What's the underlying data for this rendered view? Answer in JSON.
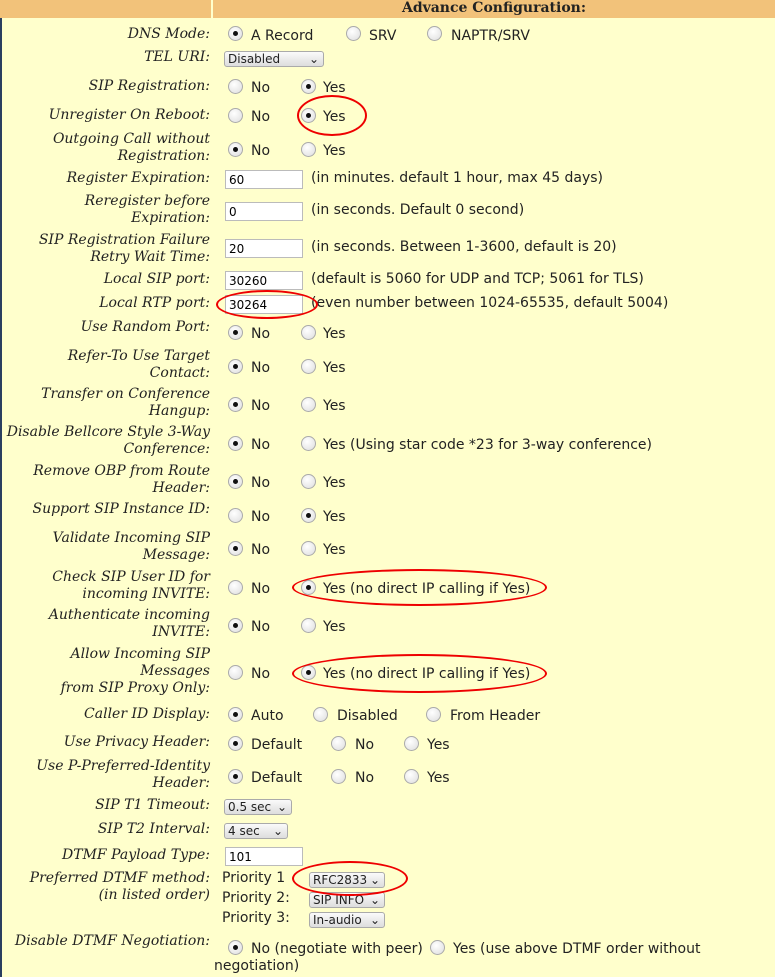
{
  "title": "Advance Configuration:",
  "labels": {
    "dns": "DNS Mode:",
    "tel": "TEL URI:",
    "sipreg": "SIP Registration:",
    "unreg": "Unregister On Reboot:",
    "outgoing": "Outgoing Call without\nRegistration:",
    "regexp": "Register Expiration:",
    "rereg": "Reregister before\nExpiration:",
    "failwait": "SIP Registration Failure\nRetry Wait Time:",
    "sipport": "Local SIP port:",
    "rtpport": "Local RTP port:",
    "randport": "Use Random Port:",
    "refer": "Refer-To Use Target\nContact:",
    "transfer": "Transfer on Conference\nHangup:",
    "bellcore": "Disable Bellcore Style 3-Way\nConference:",
    "obp": "Remove OBP from Route\nHeader:",
    "instance": "Support SIP Instance ID:",
    "validate": "Validate Incoming SIP\nMessage:",
    "checkuser": "Check SIP User ID for\nincoming INVITE:",
    "auth": "Authenticate incoming\nINVITE:",
    "allowproxy": "Allow Incoming SIP\nMessages\nfrom SIP Proxy Only:",
    "callerid": "Caller ID Display:",
    "privacy": "Use Privacy Header:",
    "ppi": "Use P-Preferred-Identity\nHeader:",
    "t1": "SIP T1 Timeout:",
    "t2": "SIP T2 Interval:",
    "dtmfpt": "DTMF Payload Type:",
    "dtmfmethod": "Preferred DTMF method:\n(in listed order)",
    "dtmfneg": "Disable DTMF Negotiation:"
  },
  "opts": {
    "arecord": "A Record",
    "srv": "SRV",
    "naptr": "NAPTR/SRV",
    "no": "No",
    "yes": "Yes",
    "yes_star": "Yes (Using star code *23 for 3-way conference)",
    "yes_direct": "Yes (no direct IP calling if Yes)",
    "auto": "Auto",
    "disabled": "Disabled",
    "fromheader": "From Header",
    "default": "Default",
    "neg_no": "No (negotiate with peer)",
    "neg_yes": "Yes (use above DTMF order without",
    "neg_yes2": "negotiation)"
  },
  "values": {
    "tel": "Disabled",
    "regexp": "60",
    "rereg": "0",
    "failwait": "20",
    "sipport": "30260",
    "rtpport": "30264",
    "t1": "0.5 sec",
    "t2": "4 sec",
    "dtmfpt": "101",
    "p1": "RFC2833",
    "p2": "SIP INFO",
    "p3": "In-audio"
  },
  "hints": {
    "regexp": "(in minutes. default 1 hour, max 45 days)",
    "rereg": "(in seconds. Default 0 second)",
    "failwait": "(in seconds. Between 1-3600, default is 20)",
    "sipport": "(default is 5060 for UDP and TCP; 5061 for TLS)",
    "rtpport": "(even number between 1024-65535, default 5004)"
  },
  "priorities": {
    "p1": "Priority 1",
    "p2": "Priority 2:",
    "p3": "Priority 3:"
  },
  "annotation_color": "#e00000"
}
